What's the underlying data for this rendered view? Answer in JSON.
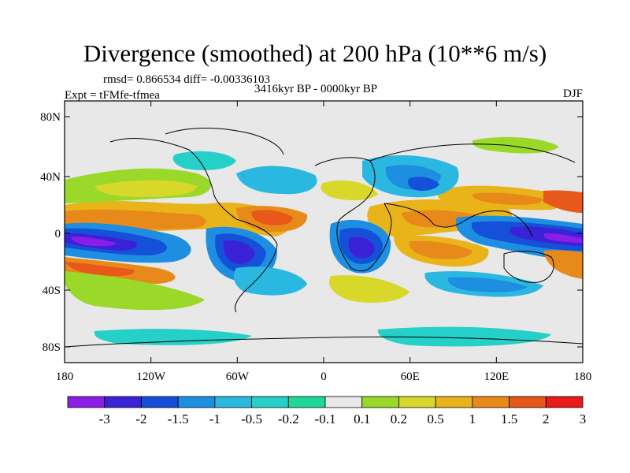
{
  "title": "Divergence (smoothed) at 200 hPa (10**6 m/s)",
  "stats": "rmsd= 0.866534 diff= -0.00336103",
  "period": "3416kyr BP - 0000kyr BP",
  "experiment": "Expt = tFMfe-tfmea",
  "season": "DJF",
  "lat_ticks": [
    "80N",
    "40N",
    "0",
    "40S",
    "80S"
  ],
  "lon_ticks": [
    "180",
    "120W",
    "60W",
    "0",
    "60E",
    "120E",
    "180"
  ],
  "colorbar": {
    "labels": [
      "-3",
      "-2",
      "-1.5",
      "-1",
      "-0.5",
      "-0.2",
      "-0.1",
      "0.1",
      "0.2",
      "0.5",
      "1",
      "1.5",
      "2",
      "3"
    ],
    "colors": [
      "#8a1ee6",
      "#3a22d6",
      "#1550d8",
      "#1d8ee0",
      "#2bb8e0",
      "#24d0c8",
      "#1ed89a",
      "#e8e8e8",
      "#9ad82a",
      "#d8d82a",
      "#e8b41a",
      "#e88a1a",
      "#e8581a",
      "#e81a1a"
    ]
  },
  "palette": {
    "neutral": "#e8e8e8",
    "frame": "#000000"
  }
}
